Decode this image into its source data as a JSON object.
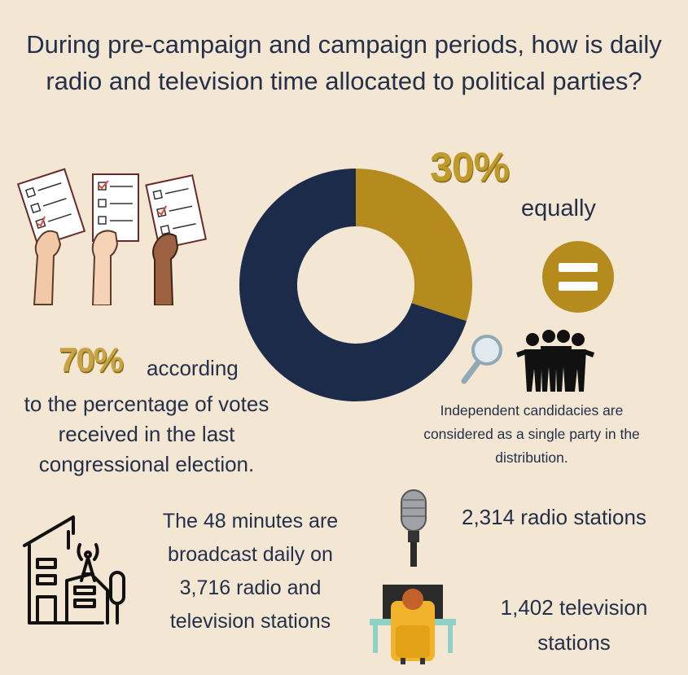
{
  "title": "During pre-campaign and campaign periods, how is daily radio and television time allocated to political parties?",
  "chart_data": {
    "type": "pie",
    "categories": [
      "equally",
      "according to the percentage of votes received in the last congressional election."
    ],
    "values": [
      30,
      70
    ],
    "colors": [
      "#b58b1e",
      "#1c2b4a"
    ]
  },
  "equal": {
    "percent": "30%",
    "label": "equally"
  },
  "votes": {
    "percent": "70%",
    "line1": "according",
    "line2": "to the percentage of votes",
    "line3": "received in the last",
    "line4": "congressional election."
  },
  "independent": {
    "line1": "Independent candidacies are",
    "line2": "considered as a single party in the",
    "line3": "distribution."
  },
  "broadcast": {
    "line1": "The 48 minutes are",
    "line2": "broadcast daily on",
    "line3": "3,716 radio and",
    "line4": "television stations"
  },
  "radio": {
    "label": "2,314 radio stations"
  },
  "tv": {
    "line1": "1,402 television",
    "line2": "stations"
  },
  "icons": {
    "ballots": "hands-holding-ballots-icon",
    "equals": "equals-sign-icon",
    "magnifier": "magnifying-glass-icon",
    "people": "group-of-people-icon",
    "building": "broadcast-building-icon",
    "microphone": "microphone-icon",
    "tv_viewer": "person-watching-tv-icon"
  }
}
